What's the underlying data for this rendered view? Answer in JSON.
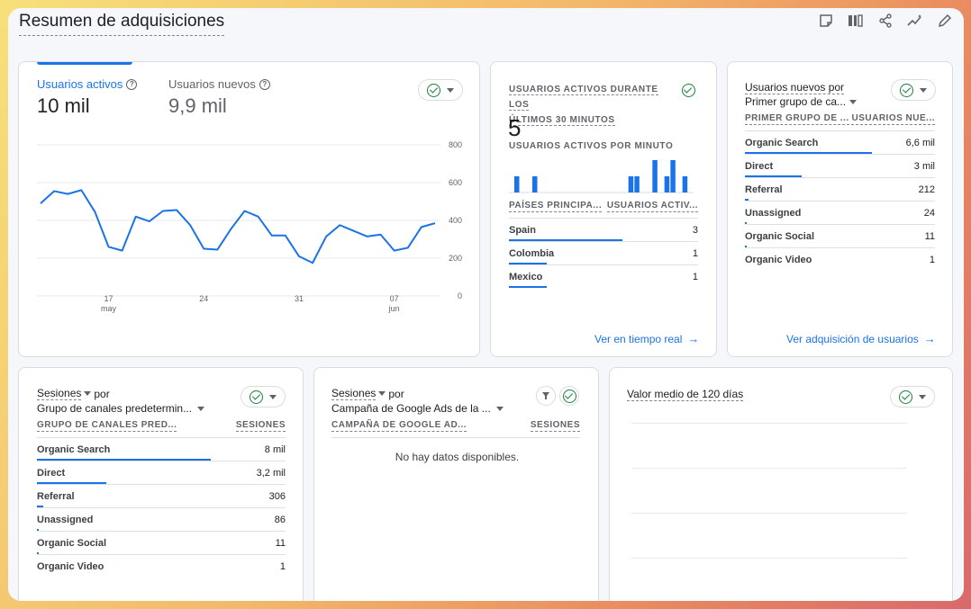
{
  "page": {
    "title": "Resumen de adquisiciones",
    "toolbar_icons": [
      "notes-icon",
      "compare-icon",
      "share-icon",
      "insights-icon",
      "edit-icon"
    ]
  },
  "users_card": {
    "metrics": [
      {
        "label": "Usuarios activos",
        "value": "10 mil"
      },
      {
        "label": "Usuarios nuevos",
        "value": "9,9 mil"
      }
    ],
    "y_ticks": [
      "800",
      "600",
      "400",
      "200",
      "0"
    ],
    "x_ticks": [
      {
        "day": "17",
        "month": "may"
      },
      {
        "day": "24",
        "month": ""
      },
      {
        "day": "31",
        "month": ""
      },
      {
        "day": "07",
        "month": "jun"
      }
    ]
  },
  "chart_data": {
    "type": "line",
    "ylim": [
      0,
      800
    ],
    "x": [
      "2024-05-12",
      "2024-05-13",
      "2024-05-14",
      "2024-05-15",
      "2024-05-16",
      "2024-05-17",
      "2024-05-18",
      "2024-05-19",
      "2024-05-20",
      "2024-05-21",
      "2024-05-22",
      "2024-05-23",
      "2024-05-24",
      "2024-05-25",
      "2024-05-26",
      "2024-05-27",
      "2024-05-28",
      "2024-05-29",
      "2024-05-30",
      "2024-05-31",
      "2024-06-01",
      "2024-06-02",
      "2024-06-03",
      "2024-06-04",
      "2024-06-05",
      "2024-06-06",
      "2024-06-07",
      "2024-06-08",
      "2024-06-09",
      "2024-06-10"
    ],
    "series": [
      {
        "values": [
          490,
          555,
          540,
          560,
          445,
          260,
          240,
          420,
          395,
          450,
          455,
          375,
          250,
          245,
          355,
          450,
          420,
          320,
          320,
          210,
          175,
          315,
          375,
          345,
          315,
          325,
          240,
          255,
          365,
          385
        ]
      }
    ],
    "x_tick_labels": [
      "17 may",
      "24",
      "31",
      "07 jun"
    ],
    "y_tick_labels": [
      "0",
      "200",
      "400",
      "600",
      "800"
    ],
    "grid": true
  },
  "realtime_card": {
    "heading_line1": "USUARIOS ACTIVOS DURANTE LOS",
    "heading_line2": "ÚLTIMOS 30 MINUTOS",
    "value": "5",
    "per_minute_label": "USUARIOS ACTIVOS POR MINUTO",
    "minute_bars": [
      1,
      0,
      0,
      1,
      0,
      0,
      0,
      0,
      0,
      0,
      0,
      0,
      0,
      0,
      0,
      0,
      0,
      0,
      0,
      1,
      1,
      0,
      0,
      2,
      0,
      1,
      2,
      0,
      1,
      0
    ],
    "col_country": "PAÍSES PRINCIPA...",
    "col_users": "USUARIOS ACTIV...",
    "rows": [
      {
        "name": "Spain",
        "value": "3",
        "share": 0.6
      },
      {
        "name": "Colombia",
        "value": "1",
        "share": 0.2
      },
      {
        "name": "Mexico",
        "value": "1",
        "share": 0.2
      }
    ],
    "link": "Ver en tiempo real"
  },
  "new_users_card": {
    "title_line1": "Usuarios nuevos por",
    "title_line2": "Primer grupo de ca...",
    "col_dim": "PRIMER GRUPO DE ...",
    "col_metric": "USUARIOS NUE...",
    "rows": [
      {
        "name": "Organic Search",
        "value": "6,6 mil",
        "share": 0.67
      },
      {
        "name": "Direct",
        "value": "3 mil",
        "share": 0.3
      },
      {
        "name": "Referral",
        "value": "212",
        "share": 0.02
      },
      {
        "name": "Unassigned",
        "value": "24",
        "share": 0.005
      },
      {
        "name": "Organic Social",
        "value": "11",
        "share": 0.002
      },
      {
        "name": "Organic Video",
        "value": "1",
        "share": 0.0
      }
    ],
    "link": "Ver adquisición de usuarios"
  },
  "sessions_card": {
    "title_line1": "Sesiones",
    "title_by": "por",
    "title_line2": "Grupo de canales predetermin...",
    "col_dim": "GRUPO DE CANALES PRED...",
    "col_metric": "SESIONES",
    "rows": [
      {
        "name": "Organic Search",
        "value": "8 mil",
        "share": 0.7
      },
      {
        "name": "Direct",
        "value": "3,2 mil",
        "share": 0.28
      },
      {
        "name": "Referral",
        "value": "306",
        "share": 0.027
      },
      {
        "name": "Unassigned",
        "value": "86",
        "share": 0.008
      },
      {
        "name": "Organic Social",
        "value": "11",
        "share": 0.002
      },
      {
        "name": "Organic Video",
        "value": "1",
        "share": 0.0
      }
    ]
  },
  "campaign_card": {
    "title_line1": "Sesiones",
    "title_by": "por",
    "title_line2": "Campaña de Google Ads de la ...",
    "col_dim": "CAMPAÑA DE GOOGLE AD...",
    "col_metric": "SESIONES",
    "empty": "No hay datos disponibles."
  },
  "ltv_card": {
    "title": "Valor medio de 120 días"
  },
  "colors": {
    "accent": "#1a73e8",
    "check": "#188038",
    "text": "#202124",
    "muted": "#5f6368"
  }
}
